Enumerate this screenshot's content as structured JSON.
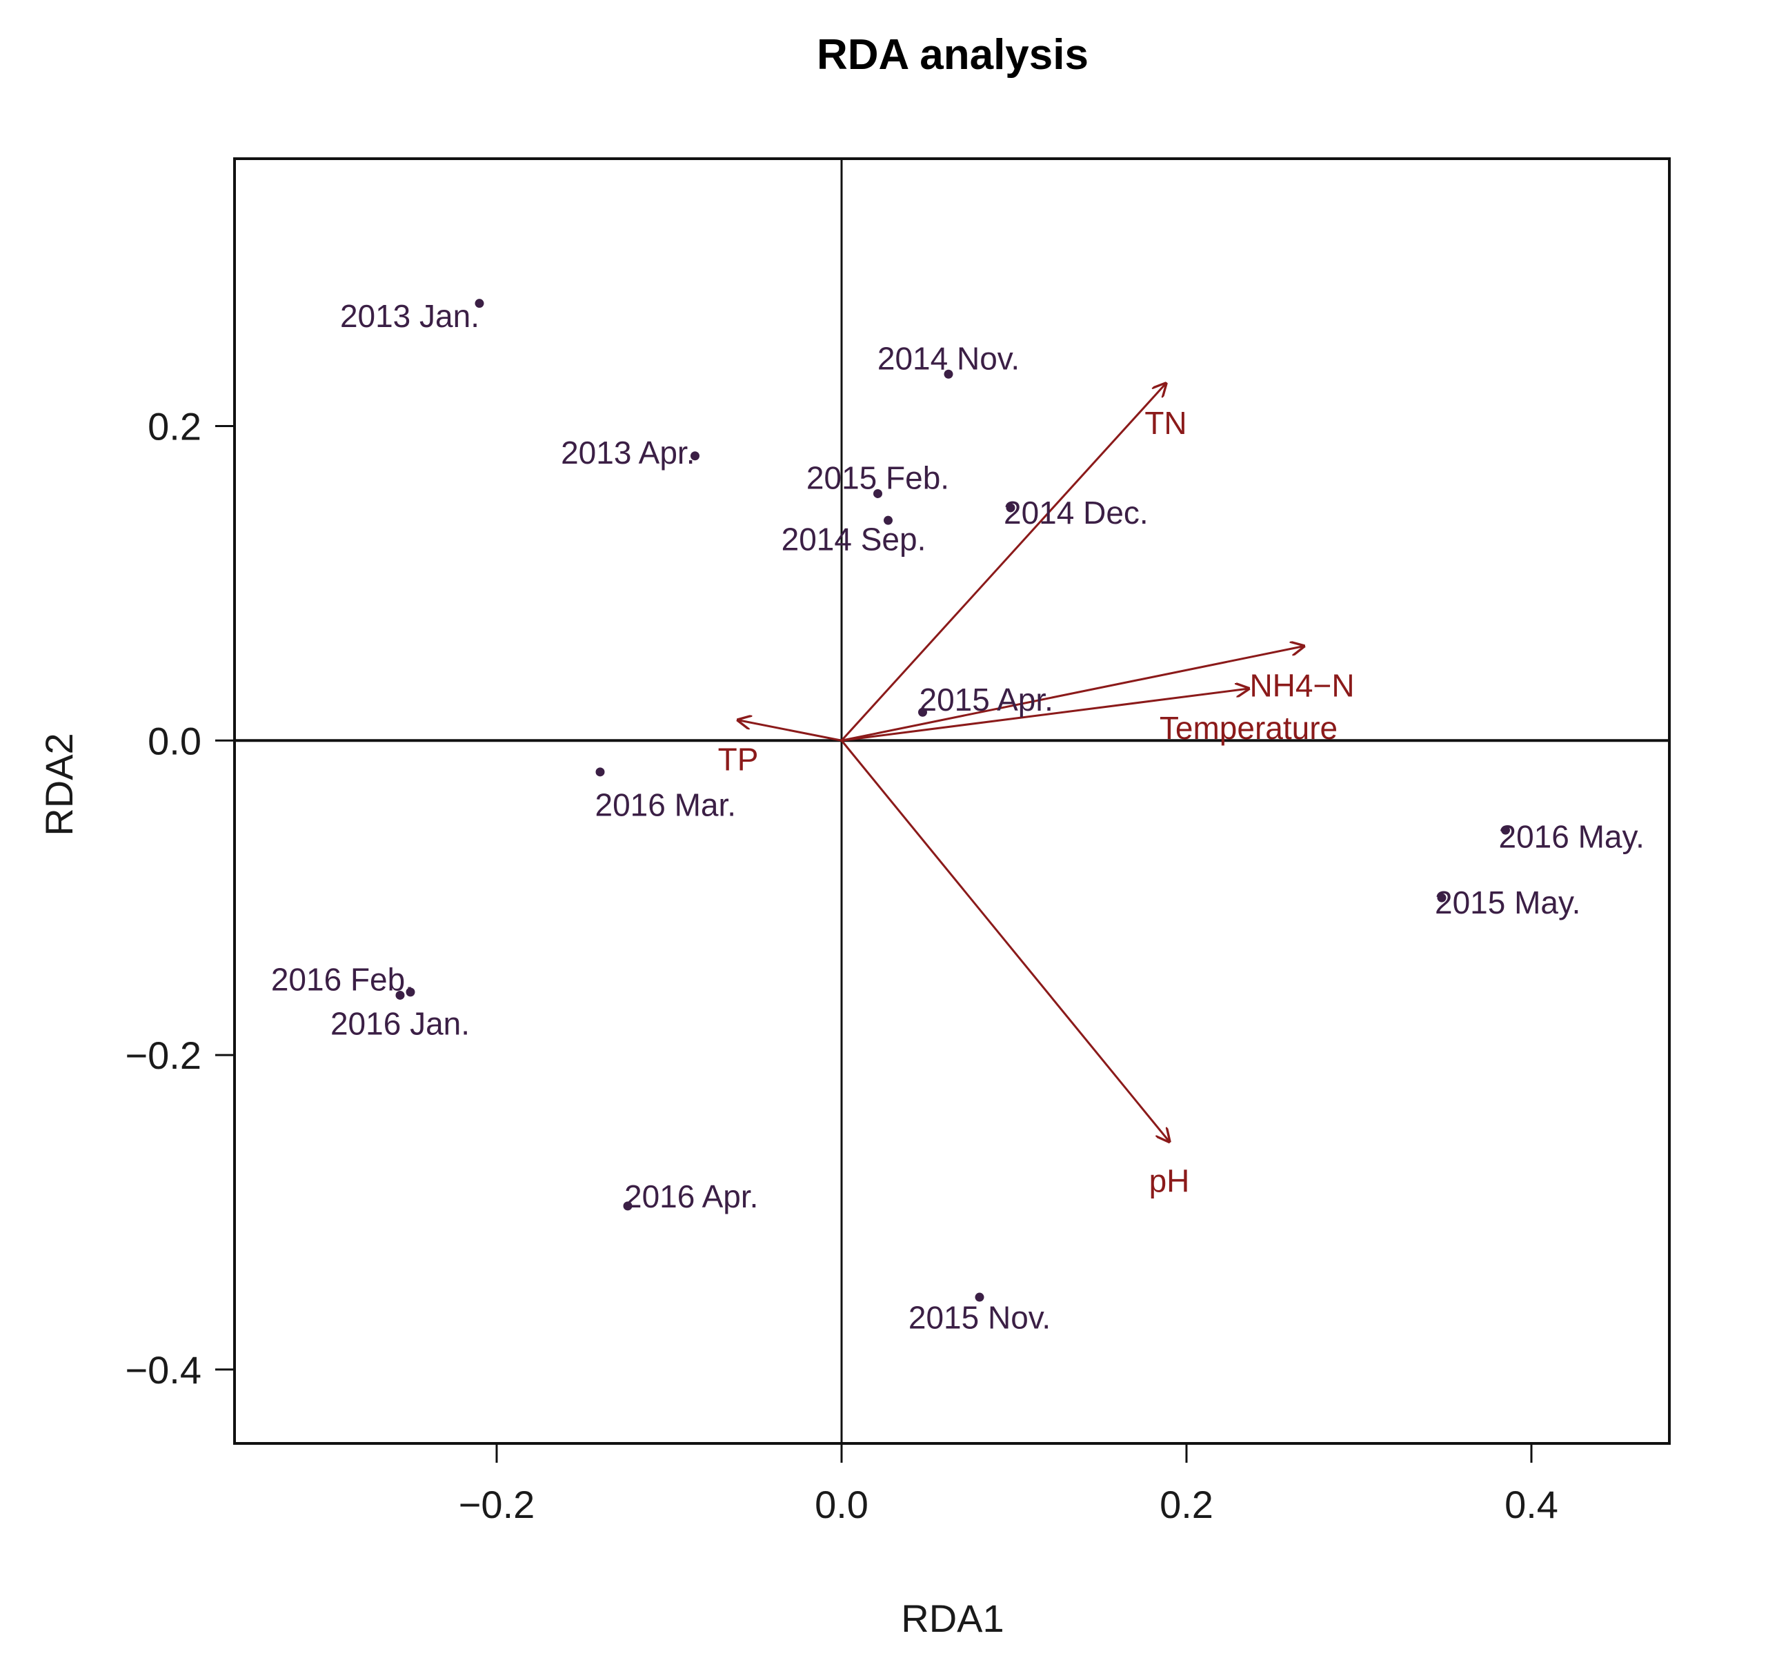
{
  "chart_data": {
    "type": "scatter",
    "title": "RDA analysis",
    "xlabel": "RDA1",
    "ylabel": "RDA2",
    "xlim": [
      -0.352,
      0.48
    ],
    "ylim": [
      -0.447,
      0.37
    ],
    "xticks": [
      {
        "value": -0.2,
        "label": "−0.2"
      },
      {
        "value": 0.0,
        "label": "0.0"
      },
      {
        "value": 0.2,
        "label": "0.2"
      },
      {
        "value": 0.4,
        "label": "0.4"
      }
    ],
    "yticks": [
      {
        "value": 0.2,
        "label": "0.2"
      },
      {
        "value": 0.0,
        "label": "0.0"
      },
      {
        "value": -0.2,
        "label": "−0.2"
      },
      {
        "value": -0.4,
        "label": "−0.4"
      }
    ],
    "reference_lines": {
      "x": 0,
      "y": 0
    },
    "point_color": "#3b1f45",
    "arrow_color": "#8b1a1a",
    "sites": [
      {
        "label": "2013 Jan.",
        "x": -0.21,
        "y": 0.278,
        "anchor": "end",
        "dx": 0,
        "dy": -0.008
      },
      {
        "label": "2013 Apr.",
        "x": -0.085,
        "y": 0.181,
        "anchor": "end",
        "dx": 0,
        "dy": 0.002
      },
      {
        "label": "2014 Nov.",
        "x": 0.062,
        "y": 0.233,
        "anchor": "middle",
        "dx": 0.0,
        "dy": 0.01
      },
      {
        "label": "2015 Feb.",
        "x": 0.021,
        "y": 0.157,
        "anchor": "middle",
        "dx": 0.0,
        "dy": 0.01
      },
      {
        "label": "2014 Sep.",
        "x": 0.027,
        "y": 0.14,
        "anchor": "middle",
        "dx": -0.02,
        "dy": -0.012
      },
      {
        "label": "2014 Dec.",
        "x": 0.098,
        "y": 0.148,
        "anchor": "start",
        "dx": -0.004,
        "dy": -0.003
      },
      {
        "label": "2015 Apr.",
        "x": 0.047,
        "y": 0.018,
        "anchor": "start",
        "dx": -0.002,
        "dy": 0.008
      },
      {
        "label": "2016 Mar.",
        "x": -0.14,
        "y": -0.02,
        "anchor": "start",
        "dx": -0.003,
        "dy": -0.021
      },
      {
        "label": "2016 May.",
        "x": 0.385,
        "y": -0.057,
        "anchor": "start",
        "dx": -0.004,
        "dy": -0.004
      },
      {
        "label": "2015 May.",
        "x": 0.348,
        "y": -0.1,
        "anchor": "start",
        "dx": -0.004,
        "dy": -0.003
      },
      {
        "label": "2016 Feb.",
        "x": -0.25,
        "y": -0.16,
        "anchor": "end",
        "dx": 0.002,
        "dy": 0.008
      },
      {
        "label": "2016 Jan.",
        "x": -0.256,
        "y": -0.162,
        "anchor": "middle",
        "dx": 0.0,
        "dy": -0.018
      },
      {
        "label": "2016 Apr.",
        "x": -0.124,
        "y": -0.296,
        "anchor": "start",
        "dx": -0.002,
        "dy": 0.006
      },
      {
        "label": "2015 Nov.",
        "x": 0.08,
        "y": -0.354,
        "anchor": "middle",
        "dx": 0.0,
        "dy": -0.013
      }
    ],
    "env_vectors": [
      {
        "label": "TN",
        "x": 0.188,
        "y": 0.227,
        "lx": 0.188,
        "ly": 0.202,
        "anchor": "middle"
      },
      {
        "label": "NH4−N",
        "x": 0.268,
        "y": 0.06,
        "lx": 0.267,
        "ly": 0.035,
        "anchor": "middle"
      },
      {
        "label": "Temperature",
        "x": 0.236,
        "y": 0.033,
        "lx": 0.236,
        "ly": 0.008,
        "anchor": "middle"
      },
      {
        "label": "TP",
        "x": -0.06,
        "y": 0.013,
        "lx": -0.06,
        "ly": -0.012,
        "anchor": "middle"
      },
      {
        "label": "pH",
        "x": 0.19,
        "y": -0.255,
        "lx": 0.19,
        "ly": -0.28,
        "anchor": "middle"
      }
    ]
  }
}
